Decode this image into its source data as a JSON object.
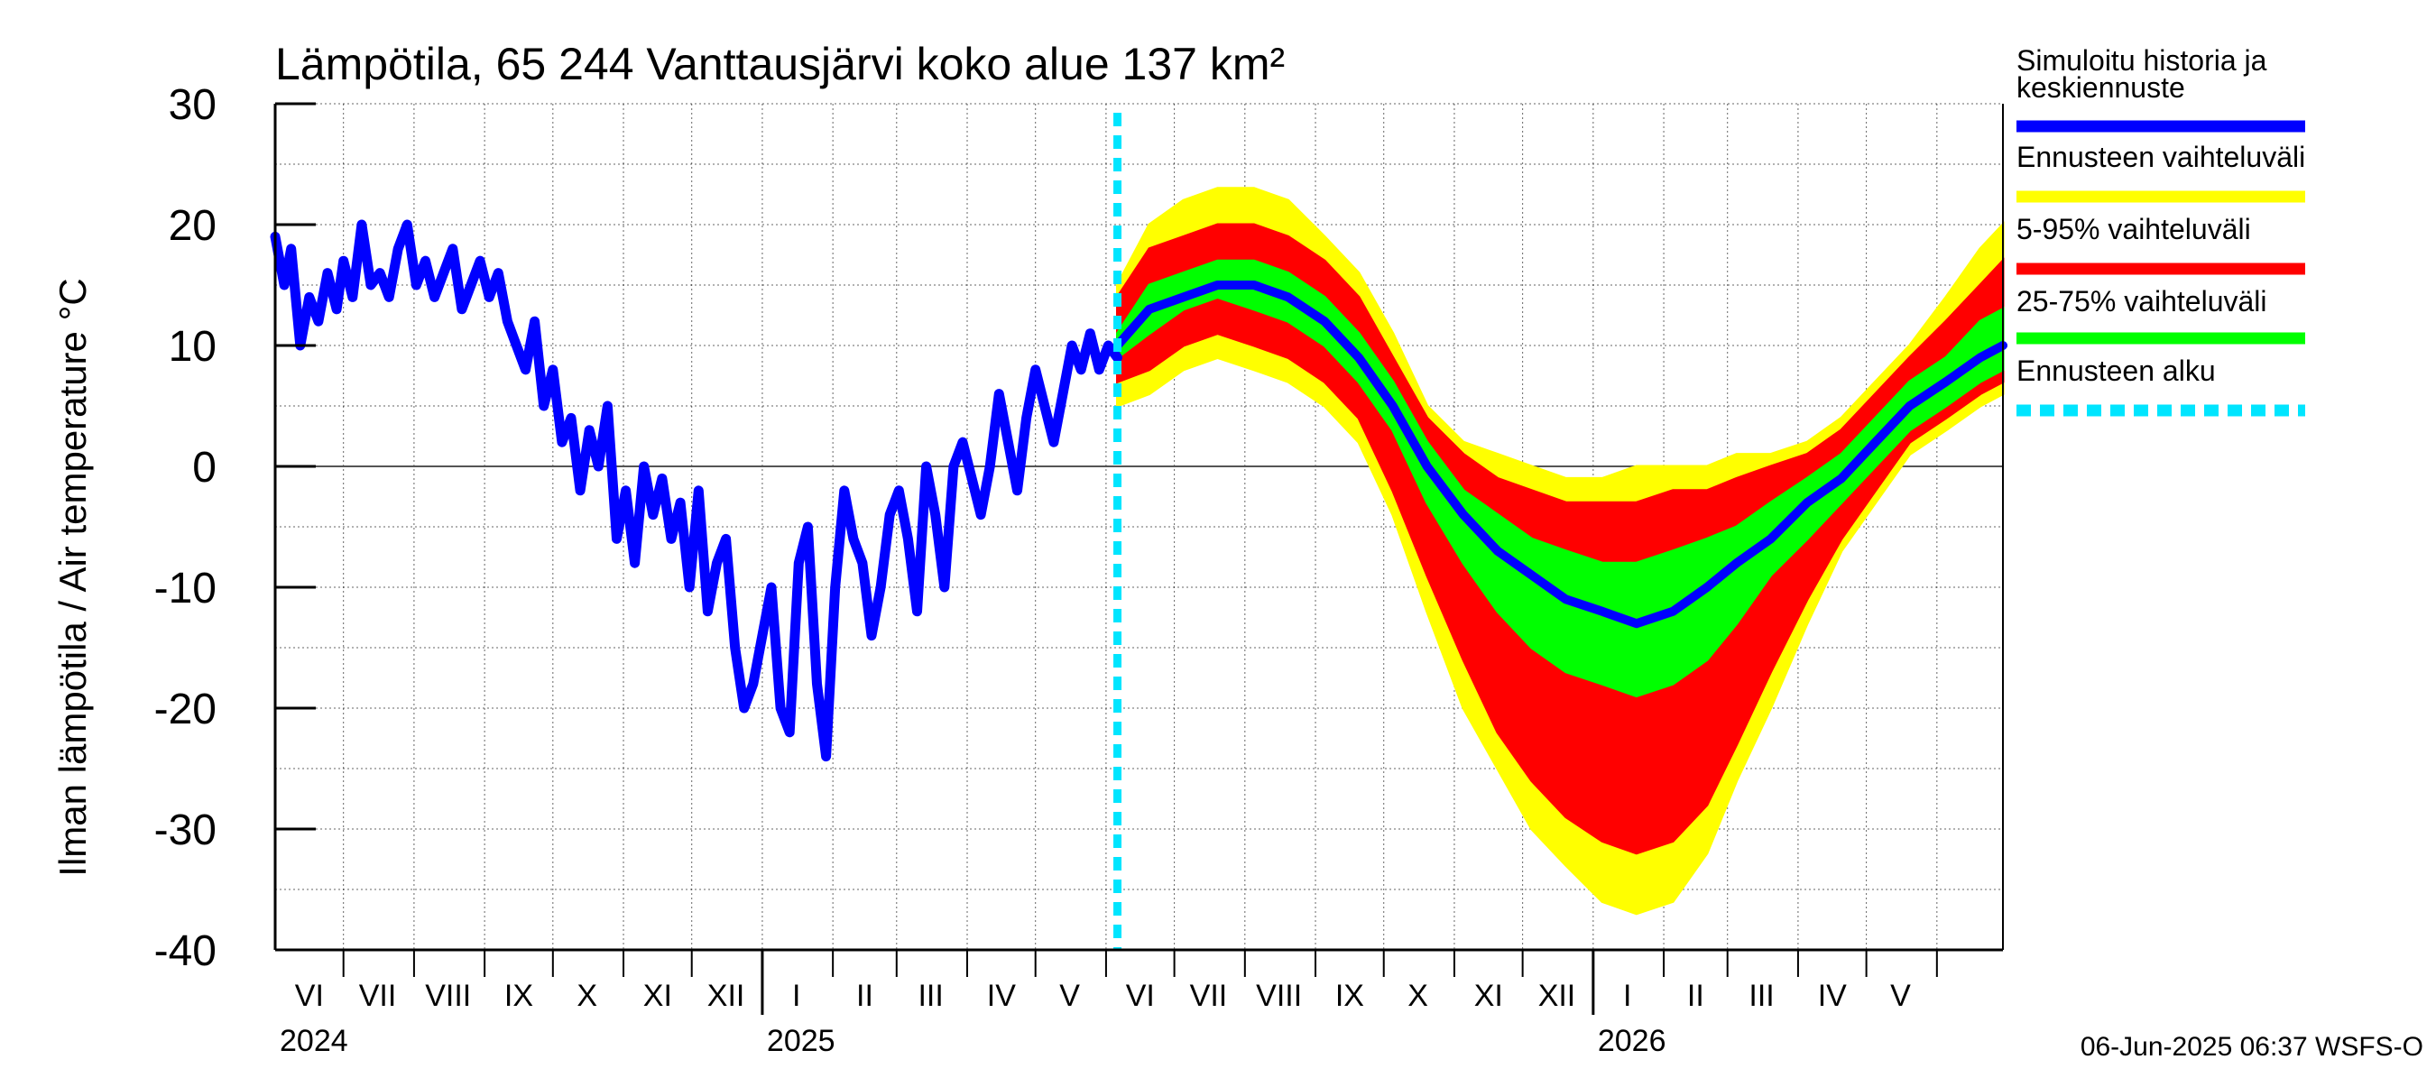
{
  "chart_data": {
    "type": "area",
    "title": "Lämpötila, 65 244 Vanttausjärvi koko alue 137 km²",
    "ylabel": "Ilman lämpötila / Air temperature   °C",
    "ylim": [
      -40,
      30
    ],
    "yticks": [
      "30",
      "20",
      "10",
      "0",
      "-10",
      "-20",
      "-30",
      "-40"
    ],
    "xlim": [
      "2024-06-01",
      "2026-06-30"
    ],
    "grid": true,
    "legend_position": "right",
    "month_labels": [
      {
        "label": "VI",
        "date": "2024-06-16"
      },
      {
        "label": "VII",
        "date": "2024-07-16"
      },
      {
        "label": "VIII",
        "date": "2024-08-16"
      },
      {
        "label": "IX",
        "date": "2024-09-16"
      },
      {
        "label": "X",
        "date": "2024-10-16"
      },
      {
        "label": "XI",
        "date": "2024-11-16"
      },
      {
        "label": "XII",
        "date": "2024-12-16"
      },
      {
        "label": "I",
        "date": "2025-01-16"
      },
      {
        "label": "II",
        "date": "2025-02-15"
      },
      {
        "label": "III",
        "date": "2025-03-16"
      },
      {
        "label": "IV",
        "date": "2025-04-16"
      },
      {
        "label": "V",
        "date": "2025-05-16"
      },
      {
        "label": "VI",
        "date": "2025-06-16"
      },
      {
        "label": "VII",
        "date": "2025-07-16"
      },
      {
        "label": "VIII",
        "date": "2025-08-16"
      },
      {
        "label": "IX",
        "date": "2025-09-16"
      },
      {
        "label": "X",
        "date": "2025-10-16"
      },
      {
        "label": "XI",
        "date": "2025-11-16"
      },
      {
        "label": "XII",
        "date": "2025-12-16"
      },
      {
        "label": "I",
        "date": "2026-01-16"
      },
      {
        "label": "II",
        "date": "2026-02-15"
      },
      {
        "label": "III",
        "date": "2026-03-16"
      },
      {
        "label": "IV",
        "date": "2026-04-16"
      },
      {
        "label": "V",
        "date": "2026-05-16"
      }
    ],
    "year_labels": [
      {
        "label": "2024",
        "date": "2024-06-01"
      },
      {
        "label": "2025",
        "date": "2025-01-01"
      },
      {
        "label": "2026",
        "date": "2026-01-01"
      }
    ],
    "forecast_start": "2025-06-06",
    "series": [
      {
        "name": "Simuloitu historia ja keskiennuste",
        "color": "#0000ff",
        "role": "history",
        "x": [
          "2024-06-01",
          "2024-06-05",
          "2024-06-08",
          "2024-06-12",
          "2024-06-16",
          "2024-06-20",
          "2024-06-24",
          "2024-06-28",
          "2024-07-01",
          "2024-07-05",
          "2024-07-09",
          "2024-07-13",
          "2024-07-17",
          "2024-07-21",
          "2024-07-25",
          "2024-07-29",
          "2024-08-02",
          "2024-08-06",
          "2024-08-10",
          "2024-08-14",
          "2024-08-18",
          "2024-08-22",
          "2024-08-26",
          "2024-08-30",
          "2024-09-03",
          "2024-09-07",
          "2024-09-11",
          "2024-09-15",
          "2024-09-19",
          "2024-09-23",
          "2024-09-27",
          "2024-10-01",
          "2024-10-05",
          "2024-10-09",
          "2024-10-13",
          "2024-10-17",
          "2024-10-21",
          "2024-10-25",
          "2024-10-29",
          "2024-11-02",
          "2024-11-06",
          "2024-11-10",
          "2024-11-14",
          "2024-11-18",
          "2024-11-22",
          "2024-11-26",
          "2024-11-30",
          "2024-12-04",
          "2024-12-08",
          "2024-12-12",
          "2024-12-16",
          "2024-12-20",
          "2024-12-24",
          "2024-12-28",
          "2025-01-01",
          "2025-01-05",
          "2025-01-09",
          "2025-01-13",
          "2025-01-17",
          "2025-01-21",
          "2025-01-25",
          "2025-01-29",
          "2025-02-02",
          "2025-02-06",
          "2025-02-10",
          "2025-02-14",
          "2025-02-18",
          "2025-02-22",
          "2025-02-26",
          "2025-03-02",
          "2025-03-06",
          "2025-03-10",
          "2025-03-14",
          "2025-03-18",
          "2025-03-22",
          "2025-03-26",
          "2025-03-30",
          "2025-04-03",
          "2025-04-07",
          "2025-04-11",
          "2025-04-15",
          "2025-04-19",
          "2025-04-23",
          "2025-04-27",
          "2025-05-01",
          "2025-05-05",
          "2025-05-09",
          "2025-05-13",
          "2025-05-17",
          "2025-05-21",
          "2025-05-25",
          "2025-05-29",
          "2025-06-02",
          "2025-06-06"
        ],
        "y": [
          19,
          15,
          18,
          10,
          14,
          12,
          16,
          13,
          17,
          14,
          20,
          15,
          16,
          14,
          18,
          20,
          15,
          17,
          14,
          16,
          18,
          13,
          15,
          17,
          14,
          16,
          12,
          10,
          8,
          12,
          5,
          8,
          2,
          4,
          -2,
          3,
          0,
          5,
          -6,
          -2,
          -8,
          0,
          -4,
          -1,
          -6,
          -3,
          -10,
          -2,
          -12,
          -8,
          -6,
          -15,
          -20,
          -18,
          -14,
          -10,
          -20,
          -22,
          -8,
          -5,
          -18,
          -24,
          -10,
          -2,
          -6,
          -8,
          -14,
          -10,
          -4,
          -2,
          -6,
          -12,
          0,
          -4,
          -10,
          0,
          2,
          -1,
          -4,
          0,
          6,
          2,
          -2,
          4,
          8,
          5,
          2,
          6,
          10,
          8,
          11,
          8,
          10,
          9
        ]
      },
      {
        "name": "Ennusteen vaihteluväli",
        "color": "#ffff00",
        "role": "band",
        "x": [
          "2025-06-06",
          "2025-06-20",
          "2025-07-05",
          "2025-07-20",
          "2025-08-05",
          "2025-08-20",
          "2025-09-05",
          "2025-09-20",
          "2025-10-05",
          "2025-10-20",
          "2025-11-05",
          "2025-11-20",
          "2025-12-05",
          "2025-12-20",
          "2026-01-05",
          "2026-01-20",
          "2026-02-05",
          "2026-02-20",
          "2026-03-05",
          "2026-03-20",
          "2026-04-05",
          "2026-04-20",
          "2026-05-05",
          "2026-05-20",
          "2026-06-05",
          "2026-06-20",
          "2026-06-30"
        ],
        "lower": [
          5,
          6,
          8,
          9,
          8,
          7,
          5,
          2,
          -4,
          -12,
          -20,
          -25,
          -30,
          -33,
          -36,
          -37,
          -36,
          -32,
          -26,
          -20,
          -13,
          -7,
          -3,
          1,
          3,
          5,
          6
        ],
        "upper": [
          15,
          20,
          22,
          23,
          23,
          22,
          19,
          16,
          11,
          5,
          2,
          1,
          0,
          -1,
          -1,
          0,
          0,
          0,
          1,
          1,
          2,
          4,
          7,
          10,
          14,
          18,
          20
        ]
      },
      {
        "name": "5-95% vaihteluväli",
        "color": "#ff0000",
        "role": "band",
        "x": [
          "2025-06-06",
          "2025-06-20",
          "2025-07-05",
          "2025-07-20",
          "2025-08-05",
          "2025-08-20",
          "2025-09-05",
          "2025-09-20",
          "2025-10-05",
          "2025-10-20",
          "2025-11-05",
          "2025-11-20",
          "2025-12-05",
          "2025-12-20",
          "2026-01-05",
          "2026-01-20",
          "2026-02-05",
          "2026-02-20",
          "2026-03-05",
          "2026-03-20",
          "2026-04-05",
          "2026-04-20",
          "2026-05-05",
          "2026-05-20",
          "2026-06-05",
          "2026-06-20",
          "2026-06-30"
        ],
        "lower": [
          7,
          8,
          10,
          11,
          10,
          9,
          7,
          4,
          -2,
          -9,
          -16,
          -22,
          -26,
          -29,
          -31,
          -32,
          -31,
          -28,
          -23,
          -17,
          -11,
          -6,
          -2,
          2,
          4,
          6,
          7
        ],
        "upper": [
          14,
          18,
          19,
          20,
          20,
          19,
          17,
          14,
          9,
          4,
          1,
          -1,
          -2,
          -3,
          -3,
          -3,
          -2,
          -2,
          -1,
          0,
          1,
          3,
          6,
          9,
          12,
          15,
          17
        ]
      },
      {
        "name": "25-75% vaihteluväli",
        "color": "#00ff00",
        "role": "band",
        "x": [
          "2025-06-06",
          "2025-06-20",
          "2025-07-05",
          "2025-07-20",
          "2025-08-05",
          "2025-08-20",
          "2025-09-05",
          "2025-09-20",
          "2025-10-05",
          "2025-10-20",
          "2025-11-05",
          "2025-11-20",
          "2025-12-05",
          "2025-12-20",
          "2026-01-05",
          "2026-01-20",
          "2026-02-05",
          "2026-02-20",
          "2026-03-05",
          "2026-03-20",
          "2026-04-05",
          "2026-04-20",
          "2026-05-05",
          "2026-05-20",
          "2026-06-05",
          "2026-06-20",
          "2026-06-30"
        ],
        "lower": [
          9,
          11,
          13,
          14,
          13,
          12,
          10,
          7,
          3,
          -3,
          -8,
          -12,
          -15,
          -17,
          -18,
          -19,
          -18,
          -16,
          -13,
          -9,
          -6,
          -3,
          0,
          3,
          5,
          7,
          8
        ],
        "upper": [
          11,
          15,
          16,
          17,
          17,
          16,
          14,
          11,
          7,
          2,
          -2,
          -4,
          -6,
          -7,
          -8,
          -8,
          -7,
          -6,
          -5,
          -3,
          -1,
          1,
          4,
          7,
          9,
          12,
          13
        ]
      },
      {
        "name": "keskiennuste",
        "color": "#0000ff",
        "role": "median",
        "x": [
          "2025-06-06",
          "2025-06-20",
          "2025-07-05",
          "2025-07-20",
          "2025-08-05",
          "2025-08-20",
          "2025-09-05",
          "2025-09-20",
          "2025-10-05",
          "2025-10-20",
          "2025-11-05",
          "2025-11-20",
          "2025-12-05",
          "2025-12-20",
          "2026-01-05",
          "2026-01-20",
          "2026-02-05",
          "2026-02-20",
          "2026-03-05",
          "2026-03-20",
          "2026-04-05",
          "2026-04-20",
          "2026-05-05",
          "2026-05-20",
          "2026-06-05",
          "2026-06-20",
          "2026-06-30"
        ],
        "y": [
          10,
          13,
          14,
          15,
          15,
          14,
          12,
          9,
          5,
          0,
          -4,
          -7,
          -9,
          -11,
          -12,
          -13,
          -12,
          -10,
          -8,
          -6,
          -3,
          -1,
          2,
          5,
          7,
          9,
          10
        ]
      }
    ],
    "legend": [
      {
        "label": "Simuloitu historia ja",
        "label2": "keskiennuste",
        "color": "#0000ff",
        "style": "solid"
      },
      {
        "label": "Ennusteen vaihteluväli",
        "color": "#ffff00",
        "style": "solid"
      },
      {
        "label": "5-95% vaihteluväli",
        "color": "#ff0000",
        "style": "solid"
      },
      {
        "label": "25-75% vaihteluväli",
        "color": "#00ff00",
        "style": "solid"
      },
      {
        "label": "Ennusteen alku",
        "color": "#00e5ff",
        "style": "dashed"
      }
    ]
  },
  "footer": {
    "timestamp": "06-Jun-2025 06:37 WSFS-O"
  }
}
